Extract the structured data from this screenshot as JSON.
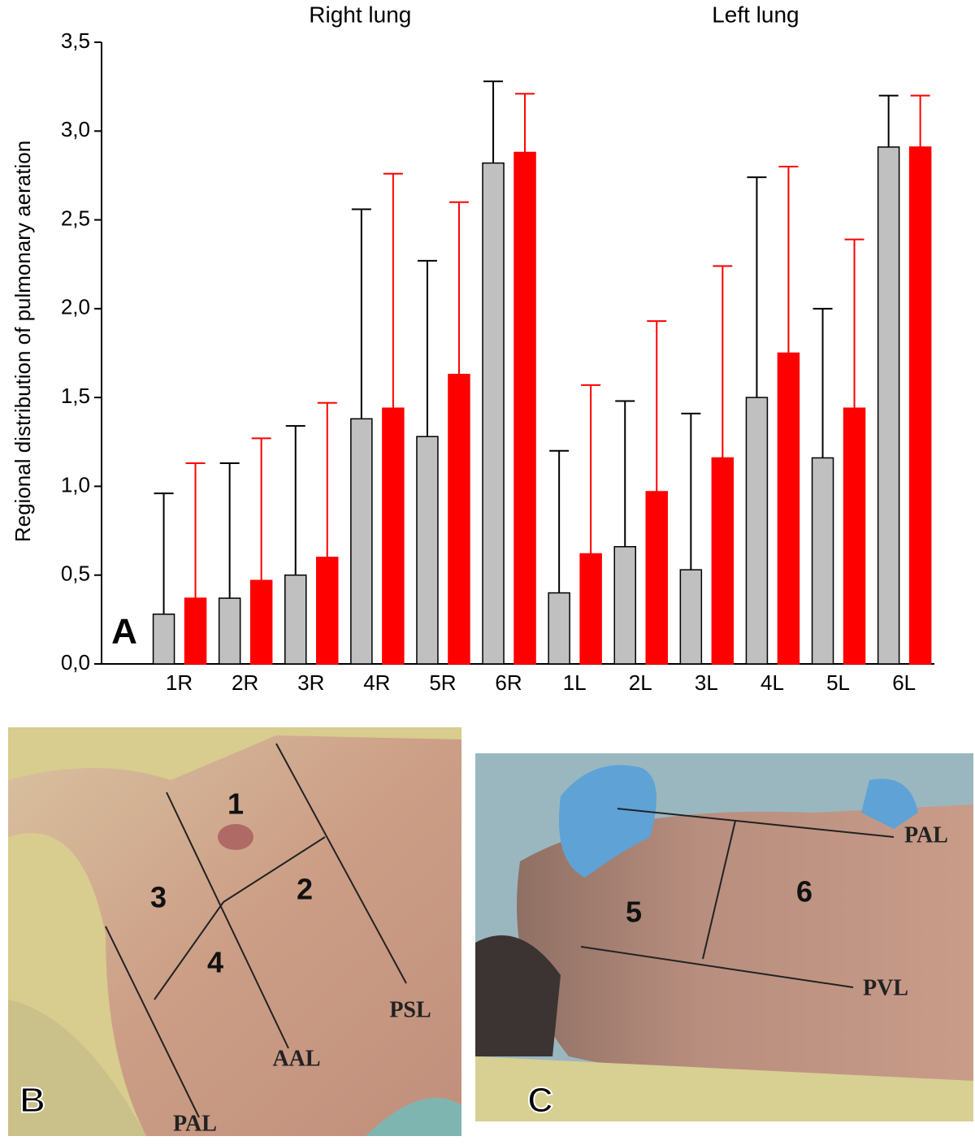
{
  "chart_data": {
    "type": "bar",
    "ylabel": "Regional distribution of pulmonary aeration",
    "group_labels": [
      "Right lung",
      "Left lung"
    ],
    "panel_label": "A",
    "categories": [
      "1R",
      "2R",
      "3R",
      "4R",
      "5R",
      "6R",
      "1L",
      "2L",
      "3L",
      "4L",
      "5L",
      "6L"
    ],
    "series": [
      {
        "color": "#c0c0c0",
        "error_color": "#000000",
        "values": [
          0.28,
          0.37,
          0.5,
          1.38,
          1.28,
          2.82,
          0.4,
          0.66,
          0.53,
          1.5,
          1.16,
          2.91
        ],
        "errors": [
          0.68,
          0.76,
          0.84,
          1.18,
          0.99,
          0.46,
          0.8,
          0.82,
          0.88,
          1.24,
          0.84,
          0.29
        ]
      },
      {
        "color": "#ff0000",
        "error_color": "#ff0000",
        "values": [
          0.37,
          0.47,
          0.6,
          1.44,
          1.63,
          2.88,
          0.62,
          0.97,
          1.16,
          1.75,
          1.44,
          2.91
        ],
        "errors": [
          0.76,
          0.8,
          0.87,
          1.32,
          0.97,
          0.33,
          0.95,
          0.96,
          1.08,
          1.05,
          0.95,
          0.29
        ]
      }
    ],
    "ylim": [
      0,
      3.5
    ],
    "yticks": [
      {
        "value": 0,
        "label": "0,0"
      },
      {
        "value": 0.5,
        "label": "0,5"
      },
      {
        "value": 1,
        "label": "1,0"
      },
      {
        "value": 1.5,
        "label": "1,5"
      },
      {
        "value": 2,
        "label": "2,0"
      },
      {
        "value": 2.5,
        "label": "2,5"
      },
      {
        "value": 3,
        "label": "3,0"
      },
      {
        "value": 3.5,
        "label": "3,5"
      }
    ]
  },
  "photos": {
    "b": {
      "panel_label": "B",
      "zones": [
        "1",
        "2",
        "3",
        "4"
      ],
      "lines": [
        "PSL",
        "AAL",
        "PAL"
      ]
    },
    "c": {
      "panel_label": "C",
      "zones": [
        "5",
        "6"
      ],
      "lines": [
        "PAL",
        "PVL"
      ]
    }
  }
}
